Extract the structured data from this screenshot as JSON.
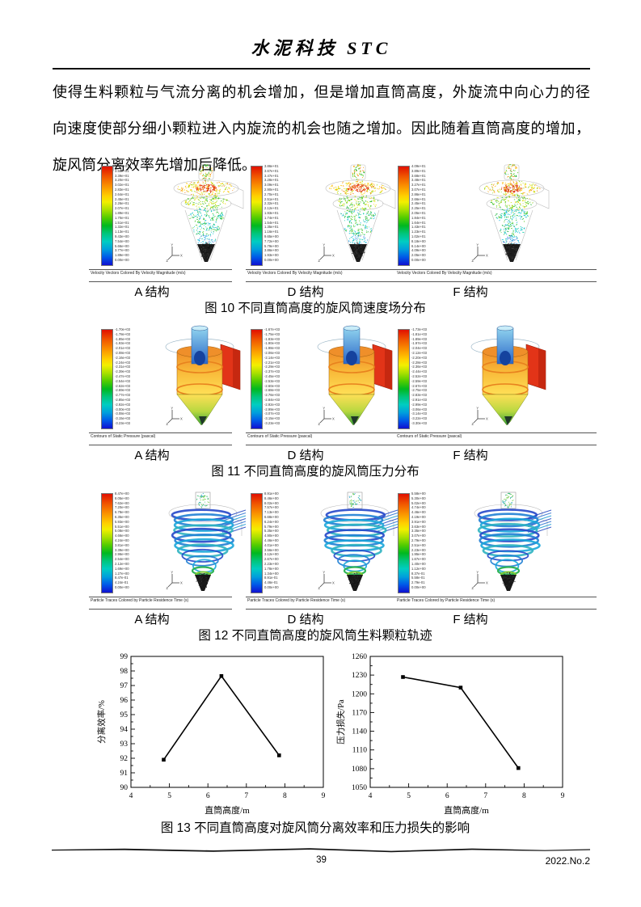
{
  "page": {
    "header_title": "水泥科技 STC",
    "paragraph_lines": [
      "使得生料颗粒与气流分离的机会增加，但是增加直筒高度，外旋流中向心力的径",
      "向速度使部分细小颗粒进入内旋流的机会也随之增加。因此随着直筒高度的增加，",
      "旋风筒分离效率先增加后降低。"
    ],
    "footer": {
      "page_number": "39",
      "issue": "2022.No.2"
    }
  },
  "figures": {
    "fig10": {
      "caption": "图 10  不同直筒高度的旋风筒速度场分布",
      "tool_caption": "Velocity Vectors Colored By Velocity Magnitude (m/s)",
      "cells": [
        {
          "label": "A 结构",
          "colorbar_ticks": [
            "3.77e+01",
            "3.58e+01",
            "3.39e+01",
            "3.20e+01",
            "3.02e+01",
            "2.83e+01",
            "2.64e+01",
            "2.45e+01",
            "2.26e+01",
            "2.07e+01",
            "1.89e+01",
            "1.70e+01",
            "1.51e+01",
            "1.32e+01",
            "1.13e+01",
            "9.43e+00",
            "7.54e+00",
            "5.66e+00",
            "3.77e+00",
            "1.89e+00",
            "0.00e+00"
          ]
        },
        {
          "label": "D 结构",
          "colorbar_ticks": [
            "3.86e+01",
            "3.67e+01",
            "3.47e+01",
            "3.28e+01",
            "3.09e+01",
            "2.90e+01",
            "2.70e+01",
            "2.51e+01",
            "2.32e+01",
            "2.12e+01",
            "1.93e+01",
            "1.74e+01",
            "1.54e+01",
            "1.35e+01",
            "1.16e+01",
            "9.65e+00",
            "7.72e+00",
            "5.79e+00",
            "3.86e+00",
            "1.93e+00",
            "0.00e+00"
          ]
        },
        {
          "label": "F 结构",
          "colorbar_ticks": [
            "4.09e+01",
            "3.89e+01",
            "3.68e+01",
            "3.48e+01",
            "3.27e+01",
            "3.07e+01",
            "2.86e+01",
            "2.66e+01",
            "2.45e+01",
            "2.25e+01",
            "2.05e+01",
            "1.84e+01",
            "1.64e+01",
            "1.43e+01",
            "1.23e+01",
            "1.02e+01",
            "8.18e+00",
            "6.14e+00",
            "4.09e+00",
            "2.05e+00",
            "0.00e+00"
          ]
        }
      ]
    },
    "fig11": {
      "caption": "图 11  不同直筒高度的旋风筒压力分布",
      "tool_caption": "Contours of Static Pressure (pascal)",
      "cells": [
        {
          "label": "A 结构",
          "colorbar_ticks": [
            "-1.70e+03",
            "-1.78e+03",
            "-1.85e+03",
            "-1.93e+03",
            "-2.01e+03",
            "-2.08e+03",
            "-2.16e+03",
            "-2.24e+03",
            "-2.31e+03",
            "-2.39e+03",
            "-2.47e+03",
            "-2.54e+03",
            "-2.62e+03",
            "-2.69e+03",
            "-2.77e+03",
            "-2.85e+03",
            "-2.92e+03",
            "-3.00e+03",
            "-3.08e+03",
            "-3.15e+03",
            "-3.23e+03"
          ]
        },
        {
          "label": "D 结构",
          "colorbar_ticks": [
            "-1.67e+03",
            "-1.75e+03",
            "-1.83e+03",
            "-1.90e+03",
            "-1.98e+03",
            "-2.06e+03",
            "-2.14e+03",
            "-2.21e+03",
            "-2.29e+03",
            "-2.37e+03",
            "-2.45e+03",
            "-2.53e+03",
            "-2.60e+03",
            "-2.68e+03",
            "-2.76e+03",
            "-2.84e+03",
            "-2.92e+03",
            "-2.99e+03",
            "-3.07e+03",
            "-3.15e+03",
            "-3.23e+03"
          ]
        },
        {
          "label": "F 结构",
          "colorbar_ticks": [
            "-1.73e+03",
            "-1.81e+03",
            "-1.89e+03",
            "-1.97e+03",
            "-2.04e+03",
            "-2.12e+03",
            "-2.20e+03",
            "-2.28e+03",
            "-2.36e+03",
            "-2.44e+03",
            "-2.52e+03",
            "-2.59e+03",
            "-2.67e+03",
            "-2.75e+03",
            "-2.83e+03",
            "-2.91e+03",
            "-2.99e+03",
            "-3.06e+03",
            "-3.14e+03",
            "-3.22e+03",
            "-3.30e+03"
          ]
        }
      ]
    },
    "fig12": {
      "caption": "图 12  不同直筒高度的旋风筒生料颗粒轨迹",
      "tool_caption": "Particle Traces Colored by Particle Residence Time (s)",
      "cells": [
        {
          "label": "A 结构",
          "colorbar_ticks": [
            "8.47e+00",
            "8.05e+00",
            "7.62e+00",
            "7.20e+00",
            "6.78e+00",
            "6.35e+00",
            "5.93e+00",
            "5.51e+00",
            "5.08e+00",
            "4.66e+00",
            "4.24e+00",
            "3.81e+00",
            "3.39e+00",
            "2.96e+00",
            "2.54e+00",
            "2.12e+00",
            "1.69e+00",
            "1.27e+00",
            "8.47e-01",
            "4.24e-01",
            "0.00e+00"
          ]
        },
        {
          "label": "D 结构",
          "colorbar_ticks": [
            "8.91e+00",
            "8.46e+00",
            "8.02e+00",
            "7.57e+00",
            "7.13e+00",
            "6.68e+00",
            "6.24e+00",
            "5.79e+00",
            "5.35e+00",
            "4.90e+00",
            "4.46e+00",
            "4.01e+00",
            "3.56e+00",
            "3.12e+00",
            "2.67e+00",
            "2.23e+00",
            "1.78e+00",
            "1.34e+00",
            "8.91e-01",
            "4.46e-01",
            "0.00e+00"
          ]
        },
        {
          "label": "F 结构",
          "colorbar_ticks": [
            "5.58e+00",
            "5.30e+00",
            "5.02e+00",
            "4.74e+00",
            "4.46e+00",
            "4.19e+00",
            "3.91e+00",
            "3.63e+00",
            "3.35e+00",
            "3.07e+00",
            "2.79e+00",
            "2.51e+00",
            "2.23e+00",
            "1.95e+00",
            "1.67e+00",
            "1.40e+00",
            "1.12e+00",
            "8.37e-01",
            "5.58e-01",
            "2.79e-01",
            "0.00e+00"
          ]
        }
      ]
    },
    "fig13": {
      "caption": "图 13  不同直筒高度对旋风筒分离效率和压力损失的影响"
    }
  },
  "chart_data": [
    {
      "type": "line",
      "title": "",
      "xlabel": "直筒高度/m",
      "ylabel": "分离效率/%",
      "x": [
        4.85,
        6.35,
        7.85
      ],
      "y": [
        91.9,
        97.65,
        92.2
      ],
      "xlim": [
        4,
        9
      ],
      "ylim": [
        90,
        99
      ],
      "xticks": [
        4,
        5,
        6,
        7,
        8,
        9
      ],
      "yticks": [
        90,
        91,
        92,
        93,
        94,
        95,
        96,
        97,
        98,
        99
      ],
      "x_minor_step": 0.5,
      "y_minor_step": 0.5,
      "marker": "square",
      "color": "#000000",
      "grid": false,
      "legend": "none"
    },
    {
      "type": "line",
      "title": "",
      "xlabel": "直筒高度/m",
      "ylabel": "压力损失/Pa",
      "x": [
        4.85,
        6.35,
        7.85
      ],
      "y": [
        1227,
        1210,
        1081
      ],
      "xlim": [
        4,
        9
      ],
      "ylim": [
        1050,
        1260
      ],
      "xticks": [
        4,
        5,
        6,
        7,
        8,
        9
      ],
      "yticks": [
        1050,
        1080,
        1110,
        1140,
        1170,
        1200,
        1230,
        1260
      ],
      "x_minor_step": 0.5,
      "y_minor_step": 15,
      "marker": "square",
      "color": "#000000",
      "grid": false,
      "legend": "none"
    }
  ]
}
